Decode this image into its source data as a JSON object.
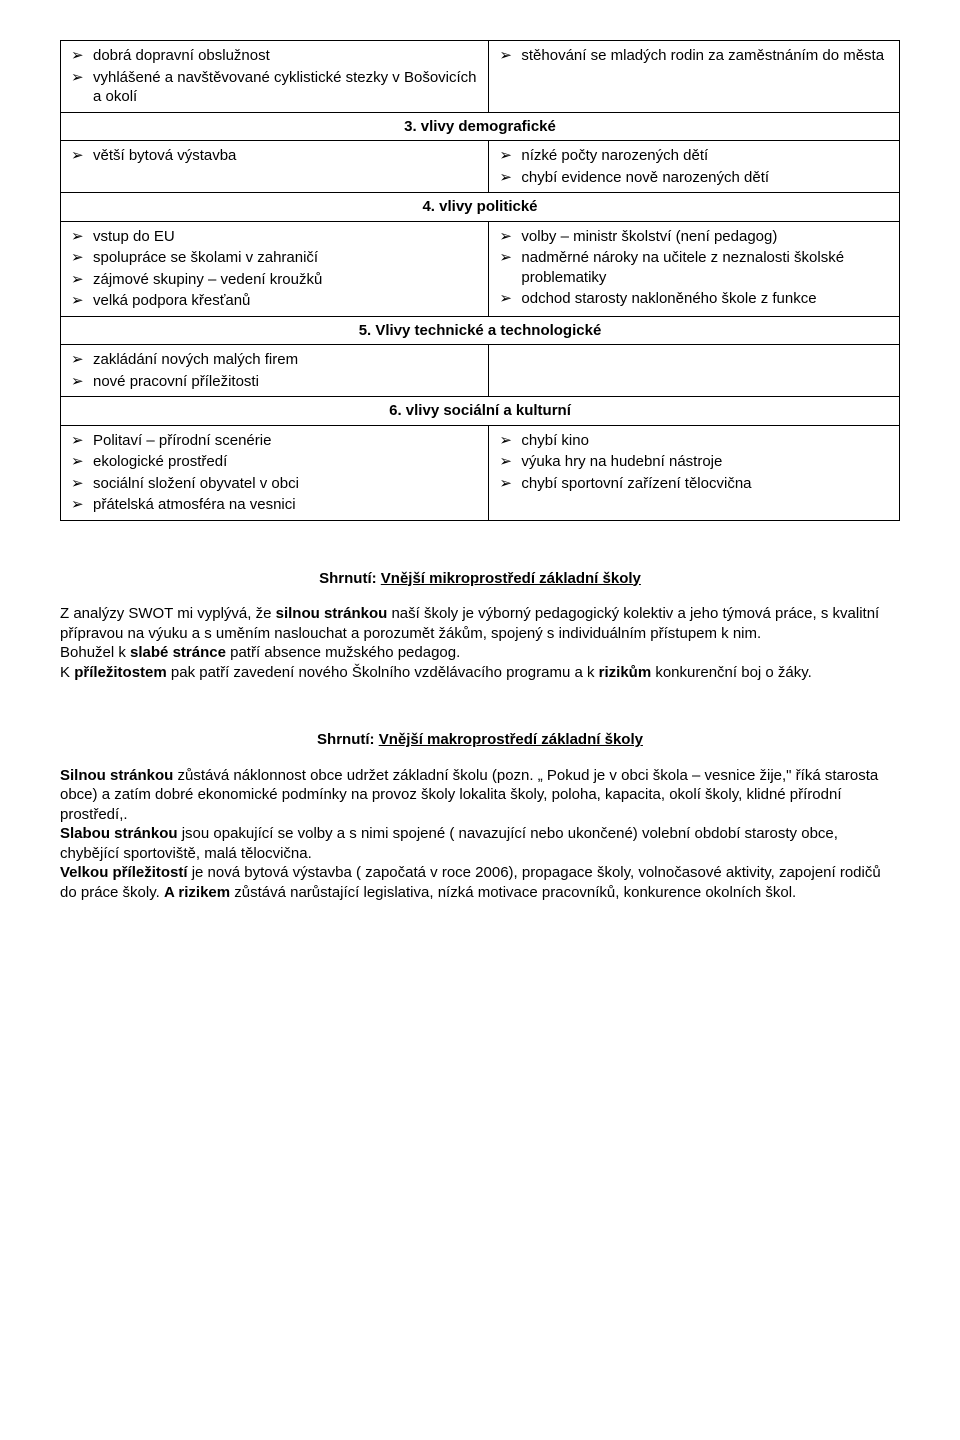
{
  "rows": [
    {
      "type": "content",
      "left": [
        "dobrá dopravní obslužnost",
        "vyhlášené a navštěvované cyklistické stezky v Bošovicích a okolí"
      ],
      "right": [
        "stěhování se mladých rodin za zaměstnáním do města"
      ]
    },
    {
      "type": "header",
      "label": "3. vlivy demografické"
    },
    {
      "type": "content",
      "left": [
        "větší bytová výstavba"
      ],
      "right": [
        "nízké počty narozených dětí",
        "chybí evidence nově narozených dětí"
      ]
    },
    {
      "type": "header",
      "label": "4. vlivy politické"
    },
    {
      "type": "content",
      "left": [
        "vstup do EU",
        "spolupráce se školami v zahraničí",
        "zájmové skupiny – vedení kroužků",
        "velká podpora křesťanů"
      ],
      "right": [
        "volby – ministr školství (není pedagog)",
        "nadměrné nároky na učitele z neznalosti školské problematiky",
        "odchod starosty nakloněného škole z funkce"
      ]
    },
    {
      "type": "header",
      "label": "5. Vlivy technické a technologické"
    },
    {
      "type": "content",
      "left": [
        "zakládání nových malých firem",
        "nové pracovní příležitosti"
      ],
      "right": []
    },
    {
      "type": "header",
      "label": "6. vlivy sociální a kulturní"
    },
    {
      "type": "content",
      "left": [
        "Politaví – přírodní scenérie",
        "ekologické prostředí",
        "sociální složení obyvatel v obci",
        "přátelská atmosféra na vesnici"
      ],
      "right": [
        "chybí kino",
        "výuka hry na hudební nástroje",
        "chybí sportovní zařízení tělocvična"
      ]
    }
  ],
  "summary1": {
    "heading_prefix": "Shrnutí:  ",
    "heading": "Vnější mikroprostředí základní školy",
    "p1_a": "Z analýzy SWOT mi vyplývá, že ",
    "p1_b": "silnou stránkou",
    "p1_c": " naší školy je výborný pedagogický kolektiv a jeho týmová práce, s kvalitní přípravou na výuku a s uměním naslouchat a porozumět žákům, spojený s individuálním přístupem k nim.",
    "p2_a": "Bohužel k ",
    "p2_b": "slabé stránce",
    "p2_c": " patří absence mužského pedagog.",
    "p3_a": "K ",
    "p3_b": "příležitostem",
    "p3_c": " pak patří zavedení nového Školního vzdělávacího programu a k ",
    "p3_d": "rizikům",
    "p3_e": " konkurenční boj o žáky."
  },
  "summary2": {
    "heading_prefix": "Shrnutí:  ",
    "heading": "Vnější makroprostředí základní  školy",
    "p1_a": "Silnou stránkou",
    "p1_b": " zůstává náklonnost obce udržet základní školu (pozn. „ Pokud je v obci škola – vesnice žije,\" říká starosta obce) a zatím dobré ekonomické podmínky na provoz školy lokalita školy, poloha, kapacita, okolí školy, klidné přírodní prostředí,.",
    "p2_a": "Slabou stránkou",
    "p2_b": " jsou opakující se  volby a s nimi spojené ( navazující nebo ukončené) volební období starosty obce, chybějící sportoviště, malá tělocvična.",
    "p3_a": "Velkou příležitostí",
    "p3_b": " je  nová bytová výstavba ( započatá v roce 2006), propagace školy, volnočasové aktivity, zapojení rodičů do práce školy. ",
    "p3_c": "A rizikem",
    "p3_d": " zůstává narůstající legislativa, nízká motivace pracovníků, konkurence okolních škol."
  }
}
